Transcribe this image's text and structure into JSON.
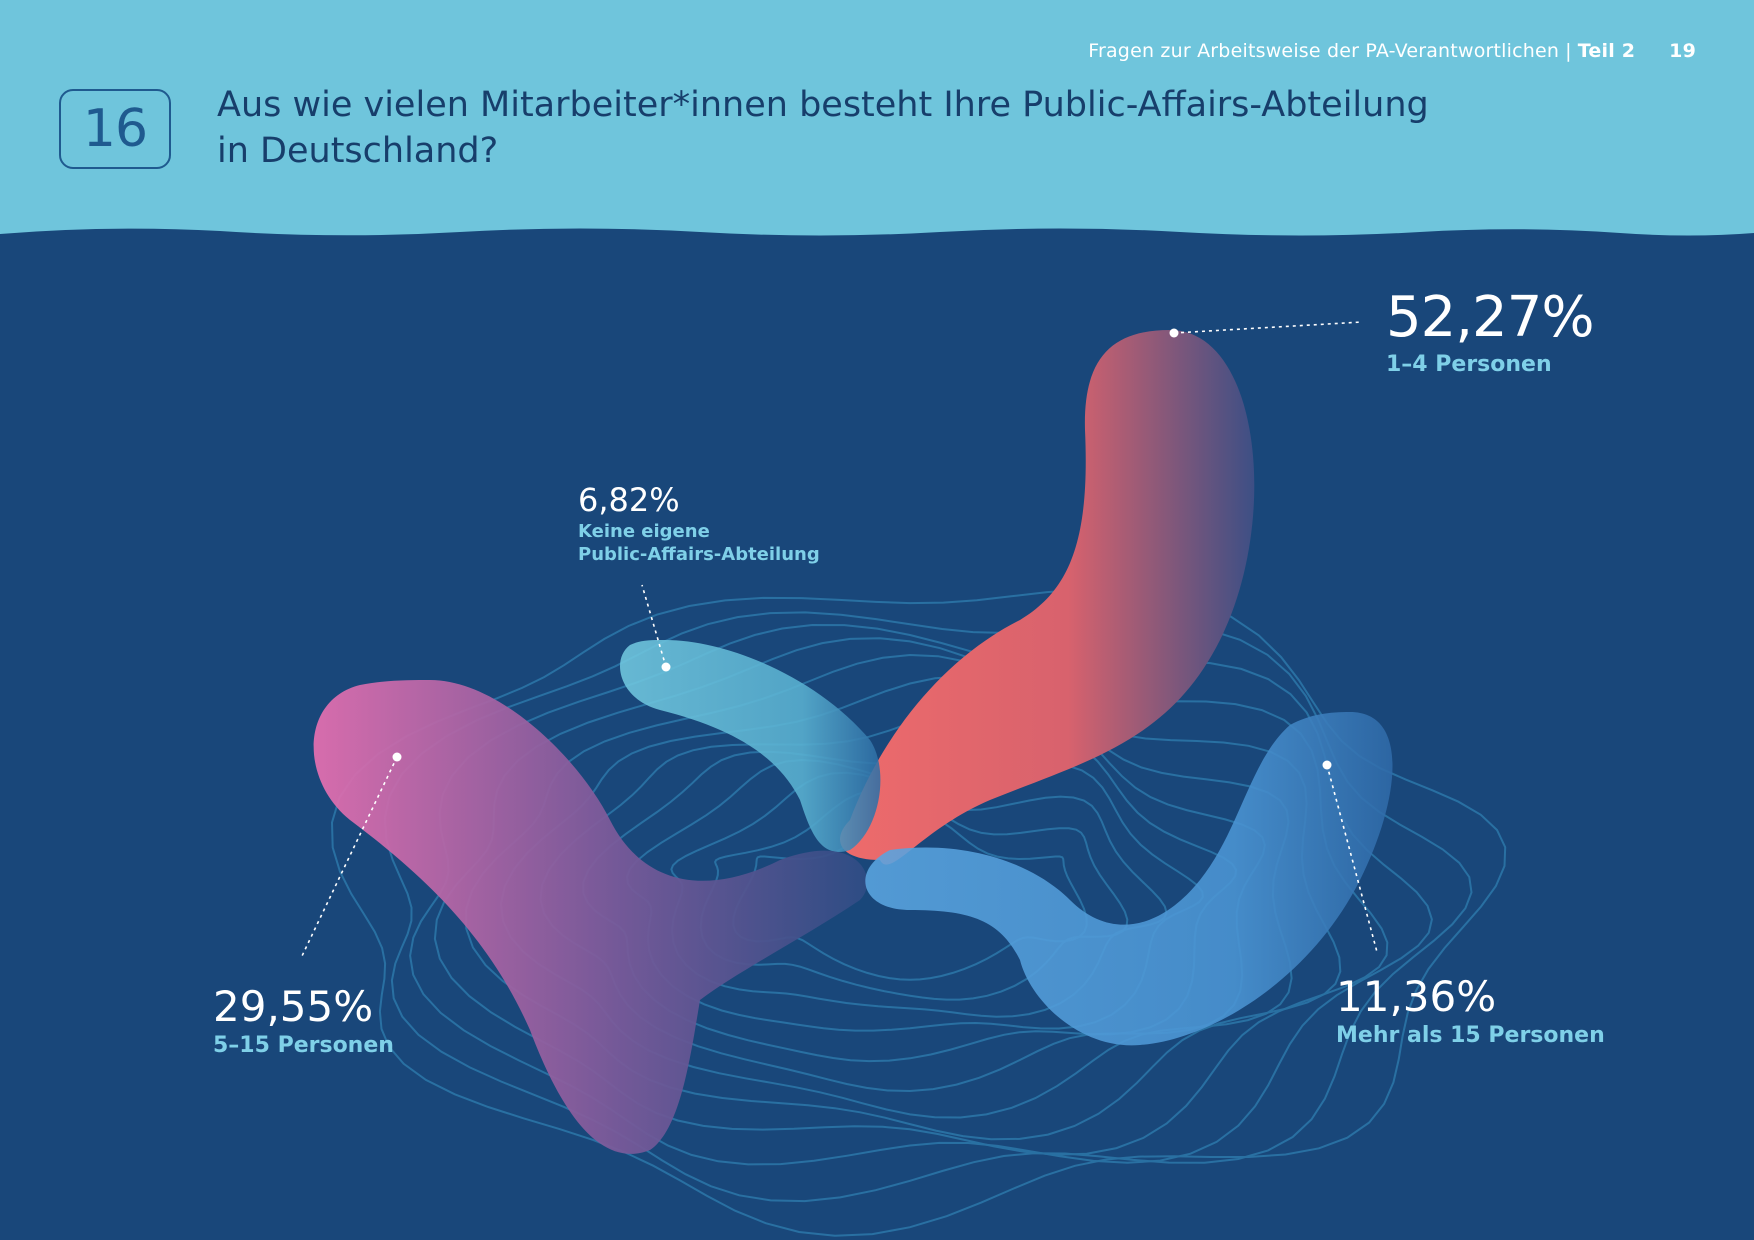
{
  "header": {
    "running_title": "Fragen zur Arbeitsweise der PA-Verantwortlichen",
    "separator": "|",
    "part": "Teil 2",
    "page_number": "19",
    "question_number": "16",
    "question_line1": "Aus wie vielen Mitarbeiter*innen besteht Ihre Public-Affairs-Abteilung",
    "question_line2": "in Deutschland?"
  },
  "colors": {
    "header_bg": "#6fc5dc",
    "page_bg": "#19477a",
    "value_text": "#ffffff",
    "category_text": "#7fd0e8"
  },
  "chart_data": {
    "type": "pie",
    "title": "",
    "unit": "%",
    "categories": [
      "1–4 Personen",
      "Keine eigene Public-Affairs-Abteilung",
      "5–15 Personen",
      "Mehr als 15 Personen"
    ],
    "values": [
      52.27,
      6.82,
      29.55,
      11.36
    ],
    "value_labels": [
      "52,27%",
      "6,82%",
      "29,55%",
      "11,36%"
    ],
    "series_colors": [
      "#e86a6a",
      "#6cc6dd",
      "#d86aa8",
      "#4c96d6"
    ],
    "legend": "none",
    "grid": false
  }
}
